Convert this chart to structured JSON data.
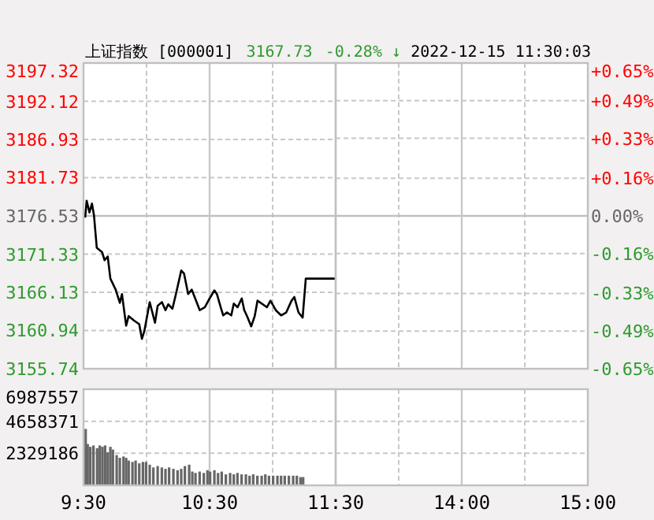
{
  "chart_data": [
    {
      "type": "line",
      "title": "上证指数 [000001]",
      "annotations": [
        "3167.73",
        "-0.28% ↓"
      ],
      "xlim": [
        9.5,
        11.5
      ],
      "ylim": [
        3155.74,
        3197.32
      ],
      "yticks": [
        3155.74,
        3160.94,
        3166.13,
        3171.33,
        3176.53,
        3181.73,
        3186.93,
        3192.12,
        3197.32
      ],
      "grid": true,
      "tick_labels": "y",
      "ref_lines": [
        {
          "axis": "y",
          "value": 3176.53,
          "color": "#c0c0c0"
        },
        {
          "axis": "x",
          "value": 10.5,
          "color": "#c8c8c8"
        }
      ],
      "series": [
        {
          "color": "#000000",
          "x": [
            9.513,
            9.525,
            9.547,
            9.567,
            9.583,
            9.605,
            9.647,
            9.667,
            9.692,
            9.713,
            9.755,
            9.788,
            9.805,
            9.838,
            9.858,
            9.9,
            9.942,
            9.963,
            9.983,
            10.025,
            10.067,
            10.088,
            10.122,
            10.15,
            10.172,
            10.205,
            10.233,
            10.275,
            10.297,
            10.33,
            10.358,
            10.388,
            10.422,
            10.463,
            10.497,
            10.538,
            10.558,
            10.588,
            10.608,
            10.638,
            10.672,
            10.692,
            10.722,
            10.755,
            10.775,
            10.797,
            10.83,
            10.858,
            10.88,
            10.922,
            10.955,
            10.983,
            11.025,
            11.067,
            11.108,
            11.15,
            11.172,
            11.205,
            11.238,
            11.263,
            11.497
          ],
          "values": [
            3176.3,
            3178.6,
            3177.0,
            3178.2,
            3176.6,
            3172.2,
            3171.6,
            3170.5,
            3171.0,
            3168.0,
            3166.5,
            3164.7,
            3165.9,
            3161.6,
            3162.9,
            3162.3,
            3161.8,
            3159.8,
            3160.9,
            3164.8,
            3162.0,
            3164.3,
            3164.8,
            3163.7,
            3164.5,
            3163.9,
            3165.9,
            3169.1,
            3168.7,
            3165.9,
            3166.5,
            3165.2,
            3163.7,
            3164.1,
            3165.2,
            3166.4,
            3165.9,
            3164.1,
            3163.0,
            3163.4,
            3163.0,
            3164.6,
            3164.1,
            3165.3,
            3163.7,
            3162.9,
            3161.5,
            3162.9,
            3165.0,
            3164.5,
            3164.1,
            3165.0,
            3163.7,
            3163.0,
            3163.4,
            3165.0,
            3165.5,
            3163.4,
            3162.7,
            3168.0,
            3168.0
          ]
        }
      ]
    },
    {
      "type": "line",
      "subtitle": "2022-12-15 11:30:03",
      "xlim": [
        13,
        15
      ],
      "y2lim": [
        -0.65,
        0.65
      ],
      "y2ticks": [
        {
          "value": -0.65,
          "label": "-0.65%"
        },
        {
          "value": -0.49,
          "label": "-0.49%"
        },
        {
          "value": -0.33,
          "label": "-0.33%"
        },
        {
          "value": -0.16,
          "label": "-0.16%"
        },
        {
          "value": 0,
          "label": "0.00%"
        },
        {
          "value": 0.16,
          "label": "+0.16%"
        },
        {
          "value": 0.33,
          "label": "+0.33%"
        },
        {
          "value": 0.49,
          "label": "+0.49%"
        },
        {
          "value": 0.65,
          "label": "+0.65%"
        }
      ],
      "grid": true,
      "tick_labels": "y",
      "ref_lines": [
        {
          "axis": "y2",
          "value": 0,
          "color": "#c0c0c0"
        },
        {
          "axis": "x",
          "value": 14,
          "color": "#c8c8c8"
        }
      ]
    },
    {
      "type": "bar",
      "xlim": [
        9.5,
        11.5
      ],
      "xticks": [
        {
          "value": 9.5,
          "label": "9:30"
        },
        {
          "value": 10,
          "label": null
        },
        {
          "value": 10.5,
          "label": "10:30"
        },
        {
          "value": 11,
          "label": null
        },
        {
          "value": 11.5,
          "label": "11:30"
        }
      ],
      "ylim": [
        0,
        6987557
      ],
      "yticks": [
        {
          "value": 0,
          "label": null
        },
        2329186,
        4658371,
        6987557
      ],
      "grid": true,
      "ref_lines": [
        {
          "axis": "x",
          "value": 10.5,
          "color": "#c8c8c8"
        }
      ],
      "series": [
        {
          "color": "#666666",
          "x": [
            9.517,
            9.533,
            9.554,
            9.579,
            9.608,
            9.629,
            9.65,
            9.671,
            9.692,
            9.713,
            9.733,
            9.763,
            9.788,
            9.817,
            9.838,
            9.858,
            9.888,
            9.913,
            9.942,
            9.971,
            9.996,
            10.025,
            10.054,
            10.088,
            10.121,
            10.15,
            10.179,
            10.213,
            10.246,
            10.275,
            10.304,
            10.338,
            10.363,
            10.388,
            10.421,
            10.454,
            10.483,
            10.504,
            10.538,
            10.567,
            10.596,
            10.629,
            10.663,
            10.692,
            10.721,
            10.754,
            10.788,
            10.817,
            10.846,
            10.879,
            10.913,
            10.942,
            10.971,
            11.004,
            11.038,
            11.067,
            11.096,
            11.129,
            11.163,
            11.192,
            11.221,
            11.242
          ],
          "values": [
            4100000,
            3000000,
            2800000,
            2900000,
            2700000,
            2900000,
            2800000,
            2900000,
            2400000,
            2800000,
            2600000,
            2200000,
            2000000,
            2100000,
            2000000,
            1800000,
            1700000,
            1800000,
            1600000,
            1700000,
            1700000,
            1500000,
            1300000,
            1400000,
            1300000,
            1200000,
            1300000,
            1200000,
            1100000,
            1200000,
            1400000,
            1500000,
            1000000,
            900000,
            1000000,
            900000,
            1100000,
            1000000,
            1100000,
            900000,
            1000000,
            800000,
            900000,
            800000,
            900000,
            800000,
            800000,
            700000,
            800000,
            700000,
            700000,
            800000,
            700000,
            700000,
            700000,
            700000,
            700000,
            700000,
            700000,
            700000,
            600000,
            600000
          ]
        }
      ]
    },
    {
      "type": "bar",
      "xlim": [
        13,
        15
      ],
      "xticks": [
        {
          "value": 13.5,
          "label": null
        },
        {
          "value": 14,
          "label": "14:00"
        },
        {
          "value": 14.5,
          "label": null
        },
        {
          "value": 15,
          "label": "15:00"
        }
      ],
      "ylim": [
        0,
        6987557
      ],
      "yticks": [
        {
          "value": 0,
          "label": null
        },
        {
          "value": 2329186,
          "label": null
        },
        {
          "value": 4658371,
          "label": null
        },
        {
          "value": 6987557,
          "label": null
        }
      ],
      "grid": true,
      "tick_labels": "x",
      "ref_lines": [
        {
          "axis": "x",
          "value": 14,
          "color": "#c8c8c8"
        }
      ]
    }
  ]
}
